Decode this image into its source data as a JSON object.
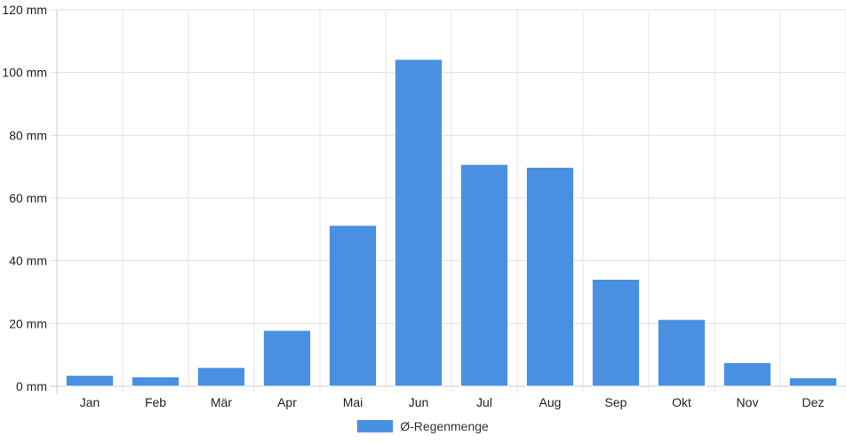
{
  "chart_data": {
    "type": "bar",
    "categories": [
      "Jan",
      "Feb",
      "Mär",
      "Apr",
      "Mai",
      "Jun",
      "Jul",
      "Aug",
      "Sep",
      "Okt",
      "Nov",
      "Dez"
    ],
    "series": [
      {
        "name": "Ø-Regenmenge",
        "values": [
          3.5,
          3,
          6,
          17.8,
          51.3,
          104.2,
          70.7,
          69.8,
          34.1,
          21.3,
          7.5,
          2.7
        ],
        "color": "#4a90e2"
      }
    ],
    "yticks": [
      "0 mm",
      "20 mm",
      "40 mm",
      "60 mm",
      "80 mm",
      "100 mm",
      "120 mm"
    ],
    "ylim": [
      0,
      120
    ],
    "grid": true,
    "legend_position": "bottom"
  }
}
